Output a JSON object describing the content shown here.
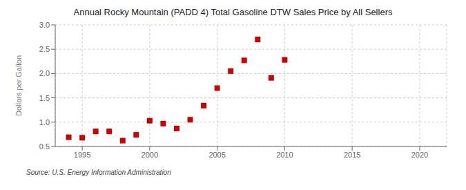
{
  "chart_data": {
    "type": "scatter",
    "title": "Annual Rocky Mountain (PADD 4) Total Gasoline DTW Sales Price by All Sellers",
    "ylabel": "Dollars per Gallon",
    "annotations": [
      "Source: U.S. Energy Information Administration"
    ],
    "x": [
      1994,
      1995,
      1996,
      1997,
      1998,
      1999,
      2000,
      2001,
      2002,
      2003,
      2004,
      2005,
      2006,
      2007,
      2008,
      2009,
      2010
    ],
    "values": [
      0.69,
      0.68,
      0.81,
      0.81,
      0.62,
      0.74,
      1.03,
      0.97,
      0.87,
      1.05,
      1.34,
      1.7,
      2.05,
      2.27,
      2.7,
      1.91,
      2.28
    ],
    "color": "#cc0000",
    "marker": "square",
    "xlim": [
      1993,
      2022
    ],
    "ylim": [
      0.5,
      3.0
    ],
    "xticks": [
      1995,
      2000,
      2005,
      2010,
      2015,
      2020
    ],
    "yticks": [
      0.5,
      {
        "value": 1.0,
        "label": "1.0"
      },
      1.5,
      {
        "value": 2.0,
        "label": "2.0"
      },
      2.5,
      {
        "value": 3.0,
        "label": "3.0"
      }
    ],
    "grid": true
  }
}
